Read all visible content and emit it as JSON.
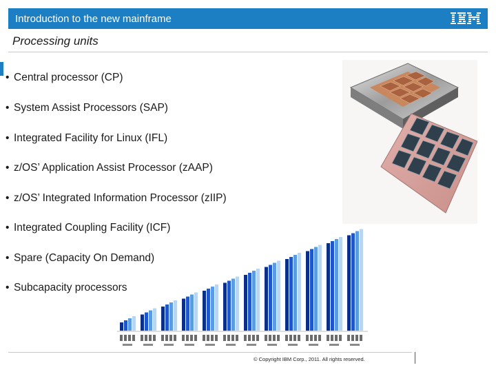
{
  "header": {
    "title": "Introduction to the new mainframe",
    "logo_text": "IBM"
  },
  "slide": {
    "subtitle": "Processing units",
    "bullets": [
      "Central processor (CP)",
      "System Assist Processors (SAP)",
      "Integrated Facility for Linux (IFL)",
      "z/OS’ Application Assist Processor (zAAP)",
      "z/OS’ Integrated Information Processor (zIIP)",
      "Integrated Coupling Facility (ICF)",
      "Spare (Capacity On Demand)",
      "Subcapacity processors"
    ],
    "bullet_symbol": "•"
  },
  "footer": {
    "copyright": "© Copyright IBM Corp., 2011. All rights reserved."
  },
  "colors": {
    "brand_blue": "#1c7ec3",
    "bar_dark": "#0a2f8a",
    "bar_mid": "#1f56c8",
    "bar_light": "#5b9be0",
    "bar_pale": "#b9d5f0"
  },
  "icons": {
    "logo": "ibm-logo",
    "photo": "processor-module-photo",
    "chart": "capacity-bar-chart"
  }
}
